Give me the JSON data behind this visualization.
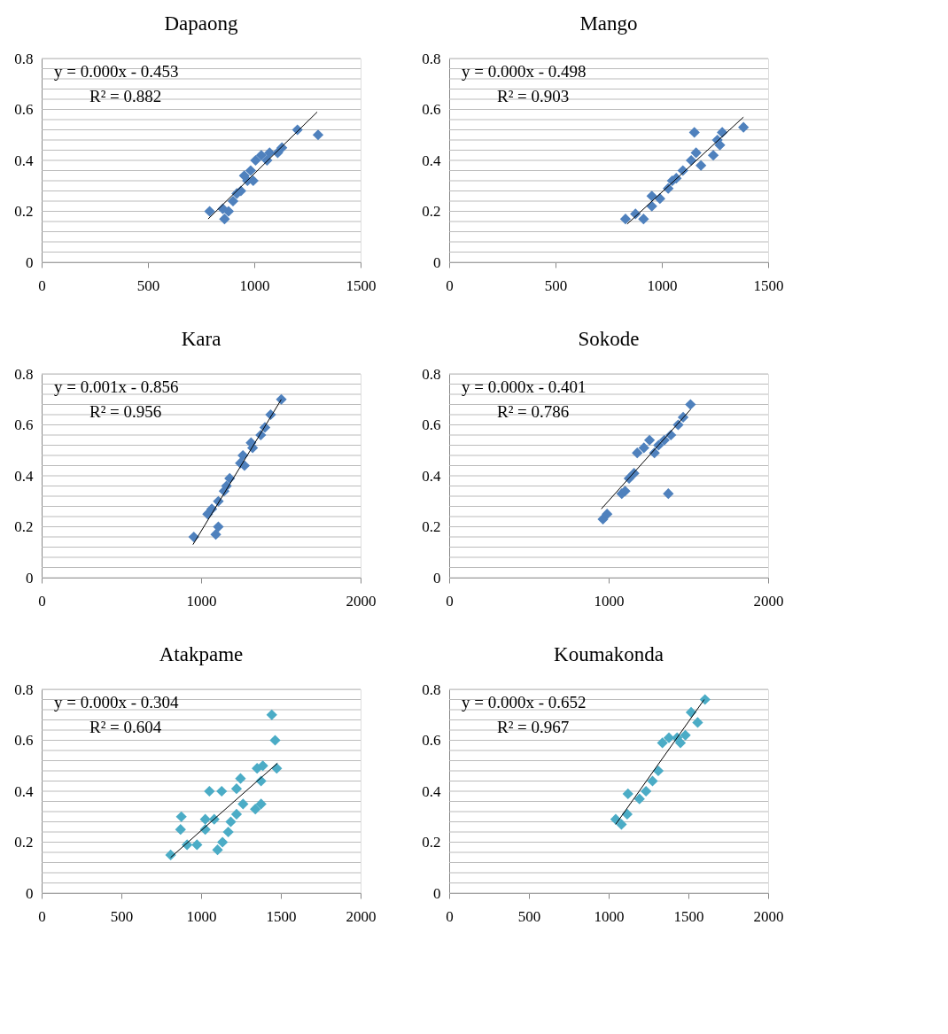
{
  "chart_data": [
    {
      "type": "scatter",
      "title": "Dapaong",
      "grid": "y",
      "xlim": [
        0,
        1500
      ],
      "xticks": [
        0,
        500,
        1000,
        1500
      ],
      "ylim": [
        0,
        0.8
      ],
      "yticks": [
        0,
        {
          "value": 0.04,
          "label": null
        },
        {
          "value": 0.08,
          "label": null
        },
        {
          "value": 0.12,
          "label": null
        },
        {
          "value": 0.16,
          "label": null
        },
        0.2,
        {
          "value": 0.24,
          "label": null
        },
        {
          "value": 0.28,
          "label": null
        },
        {
          "value": 0.32,
          "label": null
        },
        {
          "value": 0.36,
          "label": null
        },
        0.4,
        {
          "value": 0.44,
          "label": null
        },
        {
          "value": 0.48,
          "label": null
        },
        {
          "value": 0.52,
          "label": null
        },
        {
          "value": 0.56,
          "label": null
        },
        0.6,
        {
          "value": 0.64,
          "label": null
        },
        {
          "value": 0.68,
          "label": null
        },
        {
          "value": 0.72,
          "label": null
        },
        {
          "value": 0.76,
          "label": null
        },
        0.8
      ],
      "annotations": [
        "y = 0.000x - 0.453",
        "R² = 0.882"
      ],
      "series": [
        {
          "marker": "diamond",
          "color": "#4f81bd",
          "x": [
            790,
            1203,
            1300,
            860,
            879,
            900,
            937,
            968,
            983,
            1006,
            1033,
            1072,
            1110,
            1130,
            953,
            995,
            852,
            918,
            1060
          ],
          "values": [
            0.2,
            0.52,
            0.5,
            0.17,
            0.2,
            0.24,
            0.28,
            0.32,
            0.36,
            0.4,
            0.42,
            0.43,
            0.43,
            0.45,
            0.34,
            0.32,
            0.21,
            0.27,
            0.4
          ]
        },
        {
          "type": "line",
          "marker": "none",
          "color": "#000000",
          "x": [
            783,
            1296
          ],
          "values": [
            0.17,
            0.59
          ]
        }
      ]
    },
    {
      "type": "scatter",
      "title": "Mango",
      "grid": "y",
      "xlim": [
        0,
        1500
      ],
      "xticks": [
        0,
        500,
        1000,
        1500
      ],
      "ylim": [
        0,
        0.8
      ],
      "yticks": [
        0,
        {
          "value": 0.04,
          "label": null
        },
        {
          "value": 0.08,
          "label": null
        },
        {
          "value": 0.12,
          "label": null
        },
        {
          "value": 0.16,
          "label": null
        },
        0.2,
        {
          "value": 0.24,
          "label": null
        },
        {
          "value": 0.28,
          "label": null
        },
        {
          "value": 0.32,
          "label": null
        },
        {
          "value": 0.36,
          "label": null
        },
        0.4,
        {
          "value": 0.44,
          "label": null
        },
        {
          "value": 0.48,
          "label": null
        },
        {
          "value": 0.52,
          "label": null
        },
        {
          "value": 0.56,
          "label": null
        },
        0.6,
        {
          "value": 0.64,
          "label": null
        },
        {
          "value": 0.68,
          "label": null
        },
        {
          "value": 0.72,
          "label": null
        },
        {
          "value": 0.76,
          "label": null
        },
        0.8
      ],
      "annotations": [
        "y = 0.000x - 0.498",
        "R² = 0.903"
      ],
      "series": [
        {
          "marker": "diamond",
          "color": "#4f81bd",
          "x": [
            829,
            876,
            914,
            953,
            991,
            953,
            1030,
            1068,
            1099,
            1138,
            1153,
            1184,
            1242,
            1273,
            1284,
            1384,
            1049,
            1161,
            1261
          ],
          "values": [
            0.17,
            0.19,
            0.17,
            0.22,
            0.25,
            0.26,
            0.29,
            0.33,
            0.36,
            0.4,
            0.51,
            0.38,
            0.42,
            0.46,
            0.51,
            0.53,
            0.32,
            0.43,
            0.48
          ]
        },
        {
          "type": "line",
          "marker": "none",
          "color": "#000000",
          "x": [
            837,
            1384
          ],
          "values": [
            0.15,
            0.57
          ]
        }
      ]
    },
    {
      "type": "scatter",
      "title": "Kara",
      "grid": "y",
      "xlim": [
        0,
        2000
      ],
      "xticks": [
        0,
        1000,
        2000
      ],
      "ylim": [
        0,
        0.8
      ],
      "yticks": [
        0,
        {
          "value": 0.04,
          "label": null
        },
        {
          "value": 0.08,
          "label": null
        },
        {
          "value": 0.12,
          "label": null
        },
        {
          "value": 0.16,
          "label": null
        },
        0.2,
        {
          "value": 0.24,
          "label": null
        },
        {
          "value": 0.28,
          "label": null
        },
        {
          "value": 0.32,
          "label": null
        },
        {
          "value": 0.36,
          "label": null
        },
        0.4,
        {
          "value": 0.44,
          "label": null
        },
        {
          "value": 0.48,
          "label": null
        },
        {
          "value": 0.52,
          "label": null
        },
        {
          "value": 0.56,
          "label": null
        },
        0.6,
        {
          "value": 0.64,
          "label": null
        },
        {
          "value": 0.68,
          "label": null
        },
        {
          "value": 0.72,
          "label": null
        },
        {
          "value": 0.76,
          "label": null
        },
        0.8
      ],
      "annotations": [
        "y = 0.001x - 0.856",
        "R² = 0.956"
      ],
      "series": [
        {
          "marker": "diamond",
          "color": "#4f81bd",
          "x": [
            954,
            1092,
            1108,
            1041,
            1067,
            1108,
            1144,
            1159,
            1179,
            1246,
            1272,
            1262,
            1323,
            1313,
            1374,
            1400,
            1436,
            1503
          ],
          "values": [
            0.16,
            0.17,
            0.2,
            0.25,
            0.27,
            0.3,
            0.34,
            0.36,
            0.39,
            0.45,
            0.44,
            0.48,
            0.51,
            0.53,
            0.56,
            0.59,
            0.64,
            0.7
          ]
        },
        {
          "type": "line",
          "marker": "none",
          "color": "#000000",
          "x": [
            949,
            1503
          ],
          "values": [
            0.13,
            0.7
          ]
        }
      ]
    },
    {
      "type": "scatter",
      "title": "Sokode",
      "grid": "y",
      "xlim": [
        0,
        2000
      ],
      "xticks": [
        0,
        1000,
        2000
      ],
      "ylim": [
        0,
        0.8
      ],
      "yticks": [
        0,
        {
          "value": 0.04,
          "label": null
        },
        {
          "value": 0.08,
          "label": null
        },
        {
          "value": 0.12,
          "label": null
        },
        {
          "value": 0.16,
          "label": null
        },
        0.2,
        {
          "value": 0.24,
          "label": null
        },
        {
          "value": 0.28,
          "label": null
        },
        {
          "value": 0.32,
          "label": null
        },
        {
          "value": 0.36,
          "label": null
        },
        0.4,
        {
          "value": 0.44,
          "label": null
        },
        {
          "value": 0.48,
          "label": null
        },
        {
          "value": 0.52,
          "label": null
        },
        {
          "value": 0.56,
          "label": null
        },
        0.6,
        {
          "value": 0.64,
          "label": null
        },
        {
          "value": 0.68,
          "label": null
        },
        {
          "value": 0.72,
          "label": null
        },
        {
          "value": 0.76,
          "label": null
        },
        0.8
      ],
      "annotations": [
        "y = 0.000x - 0.401",
        "R² = 0.786"
      ],
      "series": [
        {
          "marker": "diamond",
          "color": "#4f81bd",
          "x": [
            964,
            990,
            1082,
            1103,
            1128,
            1159,
            1179,
            1221,
            1287,
            1313,
            1349,
            1390,
            1436,
            1467,
            1513,
            1374,
            1256
          ],
          "values": [
            0.23,
            0.25,
            0.33,
            0.34,
            0.39,
            0.41,
            0.49,
            0.51,
            0.49,
            0.52,
            0.54,
            0.56,
            0.6,
            0.63,
            0.68,
            0.33,
            0.54
          ]
        },
        {
          "type": "line",
          "marker": "none",
          "color": "#000000",
          "x": [
            954,
            1513
          ],
          "values": [
            0.27,
            0.66
          ]
        }
      ]
    },
    {
      "type": "scatter",
      "title": "Atakpame",
      "grid": "y",
      "xlim": [
        0,
        2000
      ],
      "xticks": [
        0,
        500,
        1000,
        1500,
        2000
      ],
      "ylim": [
        0,
        0.8
      ],
      "yticks": [
        0,
        {
          "value": 0.04,
          "label": null
        },
        {
          "value": 0.08,
          "label": null
        },
        {
          "value": 0.12,
          "label": null
        },
        {
          "value": 0.16,
          "label": null
        },
        0.2,
        {
          "value": 0.24,
          "label": null
        },
        {
          "value": 0.28,
          "label": null
        },
        {
          "value": 0.32,
          "label": null
        },
        {
          "value": 0.36,
          "label": null
        },
        0.4,
        {
          "value": 0.44,
          "label": null
        },
        {
          "value": 0.48,
          "label": null
        },
        {
          "value": 0.52,
          "label": null
        },
        {
          "value": 0.56,
          "label": null
        },
        0.6,
        {
          "value": 0.64,
          "label": null
        },
        {
          "value": 0.68,
          "label": null
        },
        {
          "value": 0.72,
          "label": null
        },
        {
          "value": 0.76,
          "label": null
        },
        0.8
      ],
      "annotations": [
        "y = 0.000x - 0.304",
        "R² = 0.604"
      ],
      "series": [
        {
          "marker": "diamond",
          "color": "#4bacc6",
          "x": [
            809,
            876,
            871,
            912,
            974,
            1026,
            1026,
            1052,
            1082,
            1129,
            1103,
            1134,
            1170,
            1222,
            1222,
            1247,
            1263,
            1340,
            1351,
            1387,
            1376,
            1376,
            1443,
            1464,
            1474,
            1186
          ],
          "values": [
            0.15,
            0.3,
            0.25,
            0.19,
            0.19,
            0.25,
            0.29,
            0.4,
            0.29,
            0.4,
            0.17,
            0.2,
            0.24,
            0.31,
            0.41,
            0.45,
            0.35,
            0.33,
            0.49,
            0.5,
            0.35,
            0.44,
            0.7,
            0.6,
            0.49,
            0.28
          ]
        },
        {
          "type": "line",
          "marker": "none",
          "color": "#000000",
          "x": [
            809,
            1479
          ],
          "values": [
            0.14,
            0.51
          ]
        }
      ]
    },
    {
      "type": "scatter",
      "title": "Koumakonda",
      "grid": "y",
      "xlim": [
        0,
        2000
      ],
      "xticks": [
        0,
        500,
        1000,
        1500,
        2000
      ],
      "ylim": [
        0,
        0.8
      ],
      "yticks": [
        0,
        {
          "value": 0.04,
          "label": null
        },
        {
          "value": 0.08,
          "label": null
        },
        {
          "value": 0.12,
          "label": null
        },
        {
          "value": 0.16,
          "label": null
        },
        0.2,
        {
          "value": 0.24,
          "label": null
        },
        {
          "value": 0.28,
          "label": null
        },
        {
          "value": 0.32,
          "label": null
        },
        {
          "value": 0.36,
          "label": null
        },
        0.4,
        {
          "value": 0.44,
          "label": null
        },
        {
          "value": 0.48,
          "label": null
        },
        {
          "value": 0.52,
          "label": null
        },
        {
          "value": 0.56,
          "label": null
        },
        0.6,
        {
          "value": 0.64,
          "label": null
        },
        {
          "value": 0.68,
          "label": null
        },
        {
          "value": 0.72,
          "label": null
        },
        {
          "value": 0.76,
          "label": null
        },
        0.8
      ],
      "annotations": [
        "y = 0.000x - 0.652",
        "R² = 0.967"
      ],
      "series": [
        {
          "marker": "diamond",
          "color": "#4bacc6",
          "x": [
            1044,
            1080,
            1116,
            1121,
            1193,
            1234,
            1275,
            1311,
            1337,
            1378,
            1450,
            1481,
            1517,
            1558,
            1604,
            1429
          ],
          "values": [
            0.29,
            0.27,
            0.31,
            0.39,
            0.37,
            0.4,
            0.44,
            0.48,
            0.59,
            0.61,
            0.59,
            0.62,
            0.71,
            0.67,
            0.76,
            0.61
          ]
        },
        {
          "type": "line",
          "marker": "none",
          "color": "#000000",
          "x": [
            1044,
            1599
          ],
          "values": [
            0.27,
            0.76
          ]
        }
      ]
    }
  ]
}
